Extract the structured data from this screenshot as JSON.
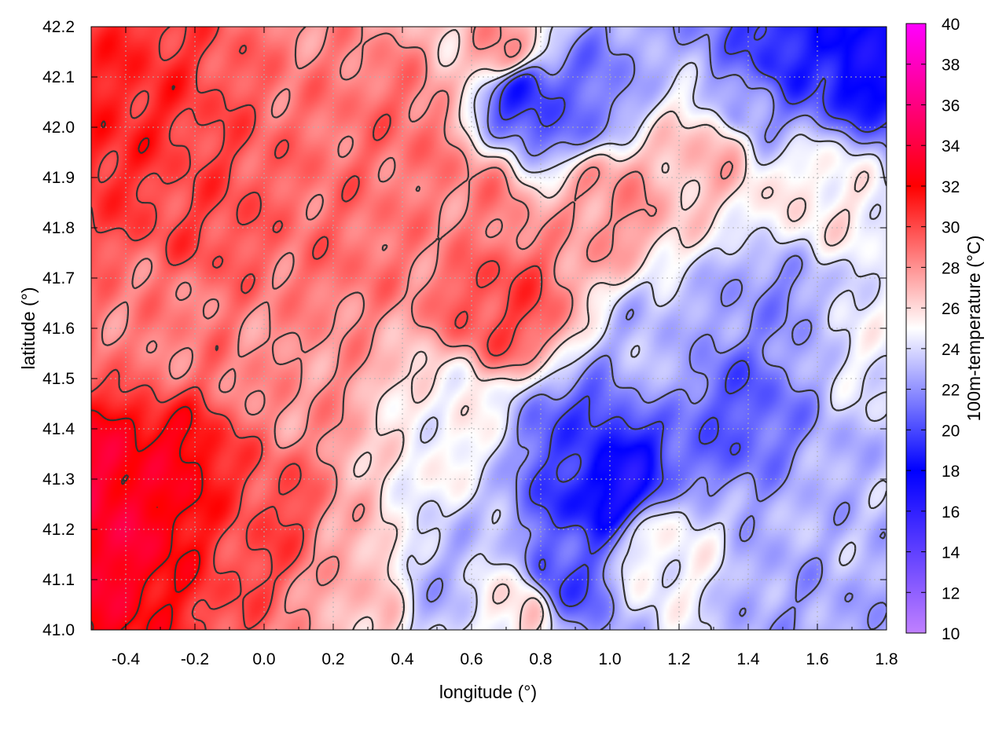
{
  "chart_data": {
    "type": "heatmap",
    "xlabel": "longitude (°)",
    "ylabel": "latitude (°)",
    "colorbar_label": "100m-temperature (°C)",
    "xlim": [
      -0.5,
      1.8
    ],
    "ylim": [
      41.0,
      42.2
    ],
    "x_ticks": [
      "-0.4",
      "-0.2",
      "0.0",
      "0.2",
      "0.4",
      "0.6",
      "0.8",
      "1.0",
      "1.2",
      "1.4",
      "1.6",
      "1.8"
    ],
    "y_ticks": [
      "41.0",
      "41.1",
      "41.2",
      "41.3",
      "41.4",
      "41.5",
      "41.6",
      "41.7",
      "41.8",
      "41.9",
      "42.0",
      "42.1",
      "42.2"
    ],
    "colorbar_range": [
      10,
      40
    ],
    "colorbar_ticks": [
      "10",
      "12",
      "14",
      "16",
      "18",
      "20",
      "22",
      "24",
      "26",
      "28",
      "30",
      "32",
      "34",
      "36",
      "38",
      "40"
    ],
    "colormap": [
      {
        "value": 10,
        "color": "#c080ff"
      },
      {
        "value": 18,
        "color": "#0000ff"
      },
      {
        "value": 25,
        "color": "#ffffff"
      },
      {
        "value": 32,
        "color": "#ff0000"
      },
      {
        "value": 40,
        "color": "#ff00ff"
      }
    ],
    "grid": true,
    "contour_color": "#333333",
    "regions": [
      {
        "lon": -0.45,
        "lat": 41.25,
        "temp": 33.5
      },
      {
        "lon": -0.3,
        "lat": 41.3,
        "temp": 32.5
      },
      {
        "lon": -0.45,
        "lat": 42.0,
        "temp": 31.0
      },
      {
        "lon": -0.2,
        "lat": 41.85,
        "temp": 30.0
      },
      {
        "lon": -0.3,
        "lat": 41.6,
        "temp": 28.5
      },
      {
        "lon": 0.0,
        "lat": 41.2,
        "temp": 30.0
      },
      {
        "lon": 0.1,
        "lat": 41.5,
        "temp": 28.0
      },
      {
        "lon": 0.2,
        "lat": 41.8,
        "temp": 29.0
      },
      {
        "lon": 0.4,
        "lat": 42.0,
        "temp": 29.0
      },
      {
        "lon": 0.7,
        "lat": 41.65,
        "temp": 30.0
      },
      {
        "lon": 0.6,
        "lat": 41.85,
        "temp": 28.5
      },
      {
        "lon": 0.3,
        "lat": 41.1,
        "temp": 27.0
      },
      {
        "lon": 0.5,
        "lat": 41.1,
        "temp": 23.0
      },
      {
        "lon": 0.75,
        "lat": 41.05,
        "temp": 26.0
      },
      {
        "lon": 0.9,
        "lat": 41.35,
        "temp": 20.0
      },
      {
        "lon": 1.0,
        "lat": 41.3,
        "temp": 17.0
      },
      {
        "lon": 0.85,
        "lat": 41.1,
        "temp": 20.0
      },
      {
        "lon": 1.15,
        "lat": 41.55,
        "temp": 23.0
      },
      {
        "lon": 1.35,
        "lat": 41.45,
        "temp": 20.5
      },
      {
        "lon": 1.5,
        "lat": 41.65,
        "temp": 22.0
      },
      {
        "lon": 1.65,
        "lat": 41.2,
        "temp": 23.0
      },
      {
        "lon": 1.55,
        "lat": 41.05,
        "temp": 22.5
      },
      {
        "lon": 1.15,
        "lat": 41.15,
        "temp": 25.0
      },
      {
        "lon": 1.6,
        "lat": 41.85,
        "temp": 25.5
      },
      {
        "lon": 1.3,
        "lat": 41.95,
        "temp": 27.0
      },
      {
        "lon": 1.0,
        "lat": 41.85,
        "temp": 28.0
      },
      {
        "lon": 0.7,
        "lat": 42.15,
        "temp": 28.0
      },
      {
        "lon": 0.9,
        "lat": 42.05,
        "temp": 21.0
      },
      {
        "lon": 0.75,
        "lat": 42.07,
        "temp": 19.0
      },
      {
        "lon": 1.5,
        "lat": 42.15,
        "temp": 19.0
      },
      {
        "lon": 1.75,
        "lat": 42.15,
        "temp": 17.5
      },
      {
        "lon": 1.4,
        "lat": 42.05,
        "temp": 22.0
      },
      {
        "lon": 1.75,
        "lat": 41.6,
        "temp": 24.5
      },
      {
        "lon": 0.55,
        "lat": 41.4,
        "temp": 25.0
      }
    ]
  }
}
